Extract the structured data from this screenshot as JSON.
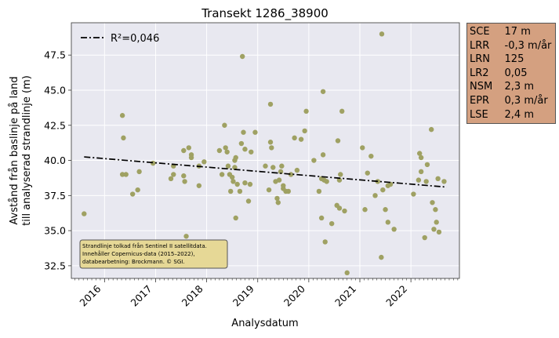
{
  "chart_data": {
    "type": "scatter",
    "title": "Transekt 1286_38900",
    "xlabel": "Analysdatum",
    "ylabel_line1": "Avstånd från baslinje på land",
    "ylabel_line2": "till analyserad strandlinje (m)",
    "xlim": [
      2015.35,
      2022.95
    ],
    "ylim": [
      31.6,
      49.8
    ],
    "x_ticks": [
      2016,
      2017,
      2018,
      2019,
      2020,
      2021,
      2022
    ],
    "x_tick_labels": [
      "2016",
      "2017",
      "2018",
      "2019",
      "2020",
      "2021",
      "2022"
    ],
    "y_ticks": [
      32.5,
      35.0,
      37.5,
      40.0,
      42.5,
      45.0,
      47.5
    ],
    "y_tick_labels": [
      "32.5",
      "35.0",
      "37.5",
      "40.0",
      "42.5",
      "45.0",
      "47.5"
    ],
    "grid": true,
    "legend": {
      "position": "top-left",
      "entries": [
        {
          "label": "R²=0,046",
          "style": "dash-dot",
          "color": "#000000"
        }
      ]
    },
    "point_color": "#9fa163",
    "background_color": "#e8e8f0",
    "trend_line": {
      "x": [
        2015.6,
        2022.7
      ],
      "y": [
        40.25,
        38.1
      ]
    },
    "annotation": {
      "lines": [
        "Strandlinje tolkad från Sentinel II satellitdata.",
        "Innehåller Copernicus-data (2015–2022),",
        "databearbetning: Brockmann. © SGI."
      ],
      "background_color": "#e6d896"
    },
    "points": [
      [
        2015.6,
        36.2
      ],
      [
        2016.35,
        43.2
      ],
      [
        2016.37,
        41.6
      ],
      [
        2016.35,
        39.0
      ],
      [
        2016.42,
        39.0
      ],
      [
        2016.55,
        37.6
      ],
      [
        2016.65,
        37.9
      ],
      [
        2016.68,
        39.2
      ],
      [
        2016.95,
        39.8
      ],
      [
        2017.3,
        38.7
      ],
      [
        2017.35,
        39.6
      ],
      [
        2017.35,
        39.0
      ],
      [
        2017.55,
        40.7
      ],
      [
        2017.55,
        38.9
      ],
      [
        2017.57,
        38.5
      ],
      [
        2017.6,
        34.6
      ],
      [
        2017.65,
        40.9
      ],
      [
        2017.7,
        40.2
      ],
      [
        2017.7,
        40.4
      ],
      [
        2017.85,
        39.6
      ],
      [
        2017.85,
        38.2
      ],
      [
        2017.95,
        39.9
      ],
      [
        2018.25,
        40.7
      ],
      [
        2018.3,
        39.0
      ],
      [
        2018.35,
        42.5
      ],
      [
        2018.37,
        40.9
      ],
      [
        2018.4,
        40.6
      ],
      [
        2018.42,
        39.6
      ],
      [
        2018.45,
        39.0
      ],
      [
        2018.47,
        37.8
      ],
      [
        2018.5,
        38.8
      ],
      [
        2018.52,
        38.5
      ],
      [
        2018.55,
        40.0
      ],
      [
        2018.55,
        39.5
      ],
      [
        2018.57,
        40.2
      ],
      [
        2018.6,
        38.3
      ],
      [
        2018.57,
        35.9
      ],
      [
        2018.65,
        37.8
      ],
      [
        2018.68,
        41.2
      ],
      [
        2018.7,
        47.4
      ],
      [
        2018.72,
        42.0
      ],
      [
        2018.75,
        38.4
      ],
      [
        2018.75,
        40.8
      ],
      [
        2018.82,
        37.1
      ],
      [
        2018.85,
        38.3
      ],
      [
        2018.87,
        40.6
      ],
      [
        2018.95,
        42.0
      ],
      [
        2019.15,
        39.6
      ],
      [
        2019.22,
        37.9
      ],
      [
        2019.25,
        41.3
      ],
      [
        2019.25,
        44.0
      ],
      [
        2019.27,
        40.9
      ],
      [
        2019.3,
        39.5
      ],
      [
        2019.35,
        38.5
      ],
      [
        2019.38,
        37.3
      ],
      [
        2019.4,
        37.0
      ],
      [
        2019.42,
        38.6
      ],
      [
        2019.45,
        39.2
      ],
      [
        2019.47,
        39.6
      ],
      [
        2019.5,
        38.0
      ],
      [
        2019.5,
        38.2
      ],
      [
        2019.55,
        37.8
      ],
      [
        2019.6,
        37.8
      ],
      [
        2019.65,
        39.0
      ],
      [
        2019.72,
        41.6
      ],
      [
        2019.77,
        39.3
      ],
      [
        2019.85,
        41.5
      ],
      [
        2019.92,
        42.1
      ],
      [
        2019.95,
        43.5
      ],
      [
        2020.1,
        40.0
      ],
      [
        2020.2,
        37.8
      ],
      [
        2020.25,
        38.7
      ],
      [
        2020.25,
        35.9
      ],
      [
        2020.28,
        40.4
      ],
      [
        2020.28,
        44.9
      ],
      [
        2020.3,
        38.6
      ],
      [
        2020.32,
        34.2
      ],
      [
        2020.35,
        38.5
      ],
      [
        2020.45,
        35.5
      ],
      [
        2020.55,
        36.8
      ],
      [
        2020.57,
        41.4
      ],
      [
        2020.6,
        36.6
      ],
      [
        2020.6,
        38.6
      ],
      [
        2020.62,
        39.0
      ],
      [
        2020.65,
        43.5
      ],
      [
        2020.7,
        36.4
      ],
      [
        2020.75,
        32.0
      ],
      [
        2021.05,
        40.9
      ],
      [
        2021.1,
        36.5
      ],
      [
        2021.15,
        39.1
      ],
      [
        2021.22,
        40.3
      ],
      [
        2021.3,
        37.5
      ],
      [
        2021.35,
        38.5
      ],
      [
        2021.42,
        33.1
      ],
      [
        2021.43,
        49.0
      ],
      [
        2021.45,
        37.9
      ],
      [
        2021.5,
        36.5
      ],
      [
        2021.55,
        38.2
      ],
      [
        2021.55,
        35.6
      ],
      [
        2021.6,
        38.3
      ],
      [
        2021.67,
        35.1
      ],
      [
        2022.05,
        37.6
      ],
      [
        2022.15,
        38.6
      ],
      [
        2022.17,
        40.5
      ],
      [
        2022.2,
        39.2
      ],
      [
        2022.2,
        40.2
      ],
      [
        2022.27,
        34.5
      ],
      [
        2022.3,
        38.5
      ],
      [
        2022.32,
        39.7
      ],
      [
        2022.4,
        42.2
      ],
      [
        2022.42,
        37.0
      ],
      [
        2022.45,
        35.1
      ],
      [
        2022.48,
        36.5
      ],
      [
        2022.5,
        35.6
      ],
      [
        2022.53,
        38.7
      ],
      [
        2022.55,
        34.9
      ],
      [
        2022.65,
        38.5
      ]
    ]
  },
  "stats": [
    {
      "key": "SCE",
      "value": "17 m"
    },
    {
      "key": "LRR",
      "value": "-0,3 m/år"
    },
    {
      "key": "LRN",
      "value": "125"
    },
    {
      "key": "LR2",
      "value": "0,05"
    },
    {
      "key": "NSM",
      "value": "2,3 m"
    },
    {
      "key": "EPR",
      "value": "0,3 m/år"
    },
    {
      "key": "LSE",
      "value": "2,4 m"
    }
  ]
}
